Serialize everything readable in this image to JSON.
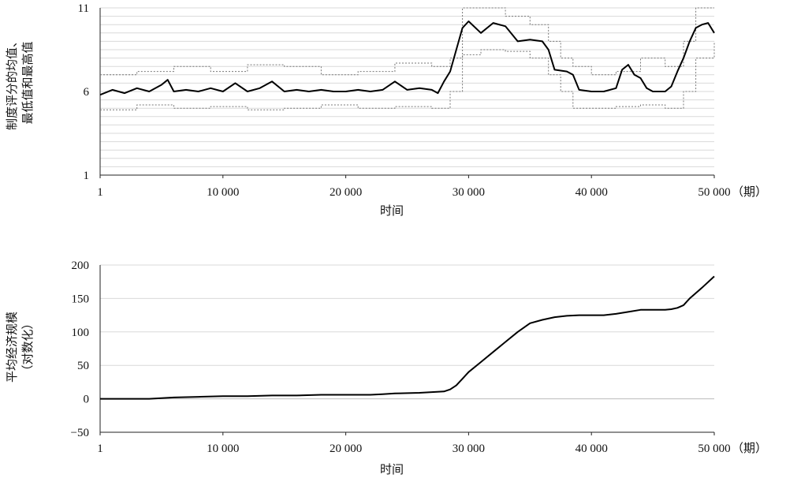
{
  "chart_data": [
    {
      "type": "line",
      "title": "",
      "xlabel": "时间",
      "xunit": "（期）",
      "ylabel_lines": [
        "制度评分的均值、",
        "最低值和最高值"
      ],
      "xlim": [
        1,
        50000
      ],
      "ylim": [
        1,
        11
      ],
      "x_ticks": [
        1,
        10000,
        20000,
        30000,
        40000,
        50000
      ],
      "x_tick_labels": [
        "1",
        "10 000",
        "20 000",
        "30 000",
        "40 000",
        "50 000"
      ],
      "y_ticks": [
        1,
        6,
        11
      ],
      "y_tick_labels": [
        "1",
        "6",
        "11"
      ],
      "grid": true,
      "series": [
        {
          "role": "mean",
          "color": "#000000",
          "x": [
            1,
            1000,
            2000,
            3000,
            4000,
            5000,
            5500,
            6000,
            7000,
            8000,
            9000,
            10000,
            11000,
            12000,
            13000,
            14000,
            15000,
            16000,
            17000,
            18000,
            19000,
            20000,
            21000,
            22000,
            23000,
            24000,
            25000,
            26000,
            27000,
            27500,
            28000,
            28500,
            29000,
            29500,
            30000,
            31000,
            32000,
            33000,
            34000,
            35000,
            36000,
            36500,
            37000,
            38000,
            38500,
            39000,
            40000,
            41000,
            42000,
            42500,
            43000,
            43500,
            44000,
            44500,
            45000,
            46000,
            46500,
            47000,
            47500,
            48000,
            48500,
            49000,
            49500,
            50000
          ],
          "y": [
            5.8,
            6.1,
            5.9,
            6.2,
            6.0,
            6.4,
            6.7,
            6.0,
            6.1,
            6.0,
            6.2,
            6.0,
            6.5,
            6.0,
            6.2,
            6.6,
            6.0,
            6.1,
            6.0,
            6.1,
            6.0,
            6.0,
            6.1,
            6.0,
            6.1,
            6.6,
            6.1,
            6.2,
            6.1,
            5.9,
            6.6,
            7.2,
            8.5,
            9.8,
            10.2,
            9.5,
            10.1,
            9.9,
            9.0,
            9.1,
            9.0,
            8.5,
            7.3,
            7.2,
            7.0,
            6.1,
            6.0,
            6.0,
            6.2,
            7.3,
            7.6,
            7.0,
            6.8,
            6.2,
            6.0,
            6.0,
            6.3,
            7.2,
            8.0,
            9.0,
            9.8,
            10.0,
            10.1,
            9.5
          ]
        },
        {
          "role": "min",
          "color": "#777777",
          "x": [
            1,
            3000,
            6000,
            9000,
            12000,
            15000,
            18000,
            21000,
            24000,
            27000,
            28500,
            29500,
            31000,
            33000,
            35000,
            36500,
            37500,
            38500,
            40000,
            42000,
            44000,
            46000,
            47500,
            48500,
            50000
          ],
          "y": [
            4.9,
            5.2,
            5.0,
            5.1,
            4.9,
            5.0,
            5.2,
            5.0,
            5.1,
            5.0,
            6.0,
            8.2,
            8.5,
            8.4,
            8.0,
            7.0,
            6.0,
            5.0,
            5.0,
            5.1,
            5.2,
            5.0,
            6.0,
            8.0,
            9.0
          ]
        },
        {
          "role": "max",
          "color": "#777777",
          "x": [
            1,
            3000,
            6000,
            9000,
            12000,
            15000,
            18000,
            21000,
            24000,
            27000,
            28500,
            29500,
            31000,
            33000,
            35000,
            36500,
            37500,
            38500,
            40000,
            42000,
            44000,
            46000,
            47500,
            48500,
            50000
          ],
          "y": [
            7.0,
            7.2,
            7.5,
            7.2,
            7.6,
            7.5,
            7.0,
            7.2,
            7.7,
            7.5,
            8.0,
            11.0,
            11.0,
            10.5,
            10.0,
            9.0,
            8.0,
            7.5,
            7.0,
            7.2,
            8.0,
            7.5,
            9.0,
            11.0,
            11.0
          ]
        }
      ]
    },
    {
      "type": "line",
      "title": "",
      "xlabel": "时间",
      "xunit": "（期）",
      "ylabel_lines": [
        "平均经济规模",
        "（对数化）"
      ],
      "xlim": [
        1,
        50000
      ],
      "ylim": [
        -50,
        200
      ],
      "x_ticks": [
        1,
        10000,
        20000,
        30000,
        40000,
        50000
      ],
      "x_tick_labels": [
        "1",
        "10 000",
        "20 000",
        "30 000",
        "40 000",
        "50 000"
      ],
      "y_ticks": [
        -50,
        0,
        50,
        100,
        150,
        200
      ],
      "y_tick_labels": [
        "−50",
        "0",
        "50",
        "100",
        "150",
        "200"
      ],
      "grid": true,
      "series": [
        {
          "role": "mean",
          "color": "#000000",
          "x": [
            1,
            2000,
            4000,
            5000,
            6000,
            8000,
            10000,
            12000,
            14000,
            16000,
            18000,
            20000,
            22000,
            23000,
            24000,
            26000,
            27000,
            28000,
            28500,
            29000,
            29500,
            30000,
            31000,
            32000,
            33000,
            34000,
            35000,
            36000,
            37000,
            38000,
            39000,
            40000,
            41000,
            42000,
            43000,
            44000,
            45000,
            46000,
            46500,
            47000,
            47500,
            48000,
            49000,
            50000
          ],
          "y": [
            0,
            0,
            0,
            1,
            2,
            3,
            4,
            4,
            5,
            5,
            6,
            6,
            6,
            7,
            8,
            9,
            10,
            11,
            14,
            20,
            30,
            40,
            55,
            70,
            85,
            100,
            113,
            118,
            122,
            124,
            125,
            125,
            125,
            127,
            130,
            133,
            133,
            133,
            134,
            136,
            140,
            150,
            166,
            183
          ]
        }
      ]
    }
  ]
}
